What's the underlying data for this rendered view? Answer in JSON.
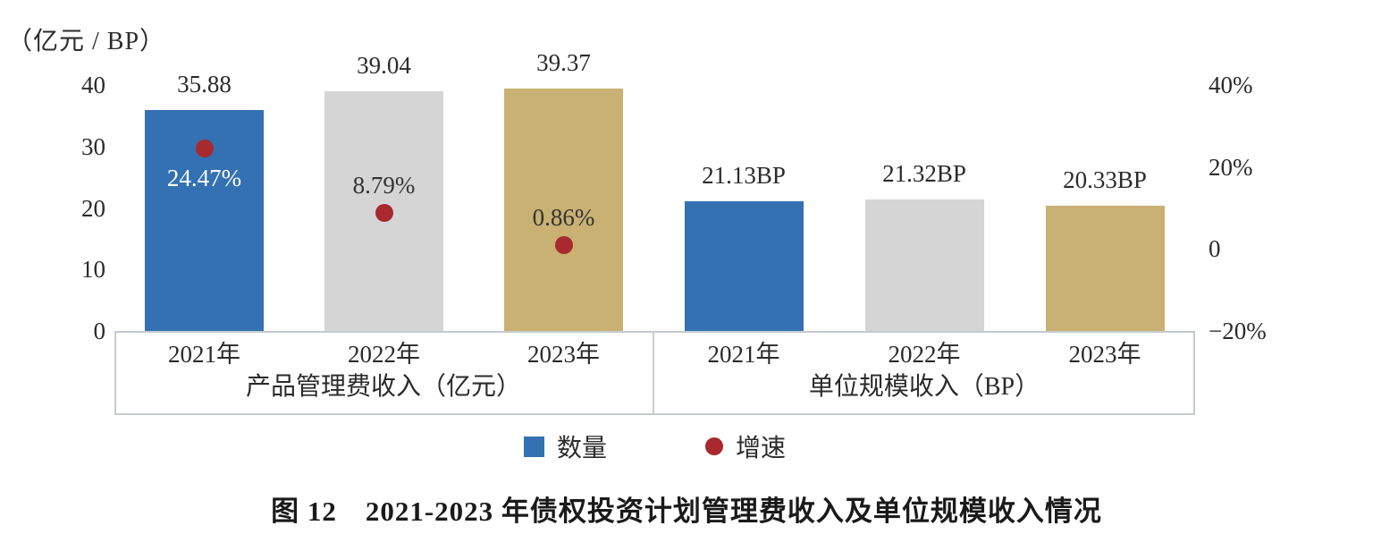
{
  "figure": {
    "unit_label": "（亿元 / BP）",
    "caption": "图 12　2021-2023 年债权投资计划管理费收入及单位规模收入情况"
  },
  "legend": {
    "quantity": "数量",
    "growth": "增速"
  },
  "colors": {
    "blue": "#3471B2",
    "gray": "#D5D5D5",
    "gold": "#C8B172",
    "red": "#A8292E",
    "axis_line": "#C6CACD",
    "text": "#2B2B2B",
    "white_label": "#FFFFFF"
  },
  "chart_data": {
    "type": "bar",
    "title": "图 12　2021-2023 年债权投资计划管理费收入及单位规模收入情况",
    "unit_label": "（亿元 / BP）",
    "grid": false,
    "legend_position": "bottom",
    "left_axis": {
      "ticks": [
        0,
        10,
        20,
        30,
        40
      ],
      "range": [
        0,
        40
      ]
    },
    "right_axis": {
      "tick_labels": [
        "40%",
        "20%",
        "0",
        "−20%"
      ],
      "tick_values": [
        40,
        20,
        0,
        -20
      ],
      "range": [
        -20,
        40
      ]
    },
    "groups": [
      {
        "title": "产品管理费收入（亿元）",
        "categories": [
          "2021年",
          "2022年",
          "2023年"
        ],
        "bars": [
          {
            "year": "2021年",
            "value": 35.88,
            "label": "35.88",
            "color_key": "blue"
          },
          {
            "year": "2022年",
            "value": 39.04,
            "label": "39.04",
            "color_key": "gray"
          },
          {
            "year": "2023年",
            "value": 39.37,
            "label": "39.37",
            "color_key": "gold"
          }
        ],
        "growth_points": [
          {
            "year": "2021年",
            "value": 24.47,
            "label": "24.47%",
            "label_position": "below",
            "label_color": "white"
          },
          {
            "year": "2022年",
            "value": 8.79,
            "label": "8.79%",
            "label_position": "above",
            "label_color": "dark"
          },
          {
            "year": "2023年",
            "value": 0.86,
            "label": "0.86%",
            "label_position": "above",
            "label_color": "dark"
          }
        ]
      },
      {
        "title": "单位规模收入（BP）",
        "categories": [
          "2021年",
          "2022年",
          "2023年"
        ],
        "bars": [
          {
            "year": "2021年",
            "value": 21.13,
            "label": "21.13BP",
            "color_key": "blue"
          },
          {
            "year": "2022年",
            "value": 21.32,
            "label": "21.32BP",
            "color_key": "gray"
          },
          {
            "year": "2023年",
            "value": 20.33,
            "label": "20.33BP",
            "color_key": "gold"
          }
        ],
        "growth_points": []
      }
    ],
    "series_legend": [
      {
        "name": "数量",
        "marker": "square",
        "color": "#3471B2"
      },
      {
        "name": "增速",
        "marker": "circle",
        "color": "#A8292E"
      }
    ]
  }
}
